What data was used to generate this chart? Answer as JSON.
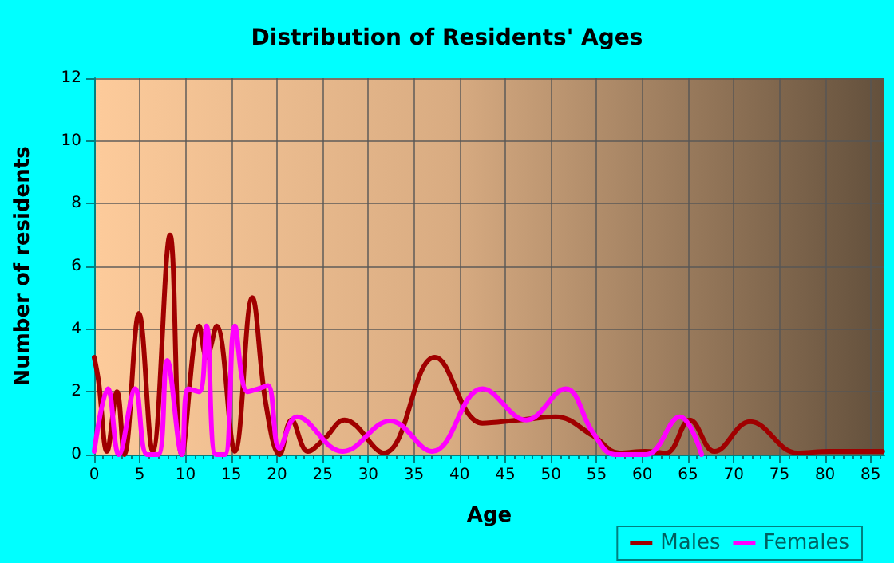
{
  "chart_data": {
    "type": "line",
    "title": "Distribution of Residents' Ages",
    "xlabel": "Age",
    "ylabel": "Number of residents",
    "xlim": [
      0,
      86.5
    ],
    "xticks": [
      0,
      5,
      10,
      15,
      20,
      25,
      30,
      35,
      40,
      45,
      50,
      55,
      60,
      65,
      70,
      75,
      80,
      85
    ],
    "ylim": [
      0,
      12
    ],
    "yticks": [
      0,
      2,
      4,
      6,
      8,
      10,
      12
    ],
    "grid": true,
    "legend": "bottom right",
    "series": [
      {
        "name": "Males",
        "color": "#a00000",
        "x": [
          0,
          0.5,
          1.4,
          2.5,
          3.3,
          4.9,
          6.4,
          8.3,
          9.6,
          11.5,
          12.3,
          13.4,
          15.4,
          17.3,
          18.8,
          20.3,
          21.6,
          23.4,
          25.2,
          27.4,
          31.7,
          37.3,
          42.5,
          46.5,
          50.5,
          54.6,
          57.5,
          60.3,
          62.6,
          65.2,
          67.9,
          71.8,
          77,
          80.5,
          86.3
        ],
        "values": [
          3.1,
          2.3,
          0.1,
          2.0,
          0,
          4.5,
          0.1,
          7.0,
          0,
          4.1,
          3.1,
          4.1,
          0.1,
          5.0,
          1.6,
          0,
          1.1,
          0.1,
          0.5,
          1.1,
          0.05,
          3.1,
          1.0,
          1.1,
          1.2,
          0.6,
          0.05,
          0.1,
          0.05,
          1.1,
          0.1,
          1.05,
          0.05,
          0.1,
          0.1
        ]
      },
      {
        "name": "Females",
        "color": "#ff00ff",
        "x": [
          0,
          1.5,
          2.7,
          4.5,
          5.8,
          7,
          8,
          9.6,
          10.3,
          11.5,
          12.3,
          13.3,
          14.3,
          15.4,
          16.8,
          18,
          19,
          20.3,
          22.2,
          27.2,
          32.4,
          37,
          42.5,
          47.3,
          51.6,
          54.6,
          57,
          60.4,
          64.1,
          66.5
        ],
        "values": [
          0.1,
          2.1,
          0,
          2.1,
          0,
          0,
          3.0,
          0,
          2.1,
          2.0,
          4.1,
          0,
          0,
          4.1,
          2.0,
          2.1,
          2.2,
          0.2,
          1.2,
          0.1,
          1.07,
          0.1,
          2.1,
          1.1,
          2.1,
          0.7,
          0,
          0,
          1.2,
          0
        ]
      }
    ]
  }
}
